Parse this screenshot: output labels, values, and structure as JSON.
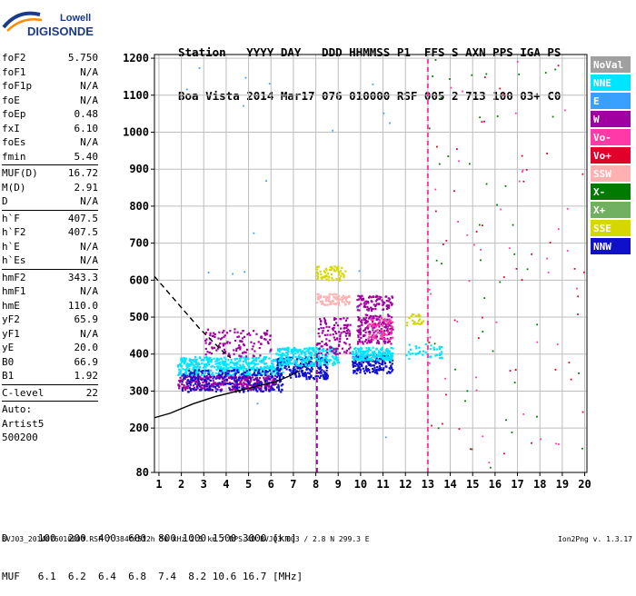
{
  "logo": {
    "line1": "Lowell",
    "line2": "DIGISONDE"
  },
  "header": {
    "line1": "Station   YYYY DAY   DDD HHMMSS P1  FFS S AXN PPS IGA PS",
    "line2": "Boa Vista 2014 Mar17 076 010000 RSF 005 2 713 100 03+ C0"
  },
  "params": [
    {
      "label": "foF2",
      "value": "5.750"
    },
    {
      "label": "foF1",
      "value": "N/A"
    },
    {
      "label": "foF1p",
      "value": "N/A"
    },
    {
      "label": "foE",
      "value": "N/A"
    },
    {
      "label": "foEp",
      "value": "0.48"
    },
    {
      "label": "fxI",
      "value": "6.10"
    },
    {
      "label": "foEs",
      "value": "N/A"
    },
    {
      "label": "fmin",
      "value": "5.40"
    },
    {
      "sep": true
    },
    {
      "label": "MUF(D)",
      "value": "16.72"
    },
    {
      "label": "M(D)",
      "value": "2.91"
    },
    {
      "label": "D",
      "value": "N/A"
    },
    {
      "sep": true
    },
    {
      "label": "h`F",
      "value": "407.5"
    },
    {
      "label": "h`F2",
      "value": "407.5"
    },
    {
      "label": "h`E",
      "value": "N/A"
    },
    {
      "label": "h`Es",
      "value": "N/A"
    },
    {
      "sep": true
    },
    {
      "label": "hmF2",
      "value": "343.3"
    },
    {
      "label": "hmF1",
      "value": "N/A"
    },
    {
      "label": "hmE",
      "value": "110.0"
    },
    {
      "label": "yF2",
      "value": "65.9"
    },
    {
      "label": "yF1",
      "value": "N/A"
    },
    {
      "label": "yE",
      "value": "20.0"
    },
    {
      "label": "B0",
      "value": "66.9"
    },
    {
      "label": "B1",
      "value": "1.92"
    },
    {
      "sep": true
    },
    {
      "label": "C-level",
      "value": "22"
    },
    {
      "sep": true
    }
  ],
  "auto": {
    "line1": "Auto:",
    "line2": "Artist5",
    "line3": "500200"
  },
  "footer": {
    "d_line": "D     100  200  400  600  800 1000 1500 3000 [km]",
    "muf_line": "MUF   6.1  6.2  6.4  6.8  7.4  8.2 10.6 16.7 [MHz]",
    "file_line": "BVJ03_2014076010000.RSF / 384fx512h 50 kHz 2.5 km / DPS-4D BVJ03 003 / 2.8 N 299.3 E",
    "version": "Ion2Png v. 1.3.17"
  },
  "chart_data": {
    "type": "scatter",
    "title": "",
    "xlabel": "",
    "ylabel": "",
    "xlim": [
      0.8,
      20.1
    ],
    "ylim": [
      80,
      1210
    ],
    "x_ticks": [
      1,
      2,
      3,
      4,
      5,
      6,
      7,
      8,
      9,
      10,
      11,
      12,
      13,
      14,
      15,
      16,
      17,
      18,
      19,
      20
    ],
    "y_ticks": [
      80,
      200,
      300,
      400,
      500,
      600,
      700,
      800,
      900,
      1000,
      1100,
      1200
    ],
    "grid": true,
    "legend_placement": "right",
    "legend": [
      {
        "name": "NoVal",
        "color": "#a0a0a0",
        "text": "#ffffff"
      },
      {
        "name": "NNE",
        "color": "#00e5ff",
        "text": "#ffffff"
      },
      {
        "name": "E",
        "color": "#3aa0ff",
        "text": "#ffffff"
      },
      {
        "name": "W",
        "color": "#a000a0",
        "text": "#ffffff"
      },
      {
        "name": "Vo-",
        "color": "#ff3aa8",
        "text": "#ffffff"
      },
      {
        "name": "Vo+",
        "color": "#e0002a",
        "text": "#ffffff"
      },
      {
        "name": "SSW",
        "color": "#ffb0b0",
        "text": "#ffffff"
      },
      {
        "name": "X-",
        "color": "#007a00",
        "text": "#ffffff"
      },
      {
        "name": "X+",
        "color": "#70b060",
        "text": "#ffffff"
      },
      {
        "name": "SSE",
        "color": "#d6d600",
        "text": "#ffffff"
      },
      {
        "name": "NNW",
        "color": "#1010c8",
        "text": "#ffffff"
      }
    ],
    "clusters": [
      {
        "x": [
          1.8,
          6.2
        ],
        "y": [
          305,
          345
        ],
        "color": "#a000a0",
        "n": 350
      },
      {
        "x": [
          1.8,
          6.5
        ],
        "y": [
          345,
          395
        ],
        "color": "#00e5ff",
        "n": 500
      },
      {
        "x": [
          3.0,
          6.0
        ],
        "y": [
          395,
          470
        ],
        "color": "#a000a0",
        "n": 120
      },
      {
        "x": [
          2.0,
          6.5
        ],
        "y": [
          300,
          360
        ],
        "color": "#1010c8",
        "n": 250
      },
      {
        "x": [
          6.2,
          8.5
        ],
        "y": [
          335,
          395
        ],
        "color": "#1010c8",
        "n": 220
      },
      {
        "x": [
          6.2,
          9.0
        ],
        "y": [
          370,
          420
        ],
        "color": "#00e5ff",
        "n": 260
      },
      {
        "x": [
          8.0,
          9.5
        ],
        "y": [
          400,
          500
        ],
        "color": "#a000a0",
        "n": 120
      },
      {
        "x": [
          9.6,
          11.4
        ],
        "y": [
          350,
          400
        ],
        "color": "#1010c8",
        "n": 180
      },
      {
        "x": [
          9.6,
          11.4
        ],
        "y": [
          385,
          420
        ],
        "color": "#00e5ff",
        "n": 180
      },
      {
        "x": [
          9.8,
          11.4
        ],
        "y": [
          430,
          510
        ],
        "color": "#a000a0",
        "n": 180
      },
      {
        "x": [
          9.8,
          11.4
        ],
        "y": [
          520,
          560
        ],
        "color": "#a000a0",
        "n": 90
      },
      {
        "x": [
          8.0,
          9.5
        ],
        "y": [
          535,
          565
        ],
        "color": "#ffb0b0",
        "n": 80
      },
      {
        "x": [
          8.0,
          9.3
        ],
        "y": [
          600,
          640
        ],
        "color": "#d6d600",
        "n": 60
      },
      {
        "x": [
          10.3,
          11.4
        ],
        "y": [
          440,
          500
        ],
        "color": "#ff3aa8",
        "n": 70
      },
      {
        "x": [
          12.0,
          12.8
        ],
        "y": [
          480,
          510
        ],
        "color": "#d6d600",
        "n": 25
      },
      {
        "x": [
          12.0,
          13.6
        ],
        "y": [
          390,
          430
        ],
        "color": "#00e5ff",
        "n": 40
      }
    ],
    "scatter_noise": [
      {
        "x": [
          13.0,
          20.0
        ],
        "y": [
          90,
          1200
        ],
        "color": "#007a00",
        "n": 45
      },
      {
        "x": [
          13.0,
          20.0
        ],
        "y": [
          90,
          1200
        ],
        "color": "#e0002a",
        "n": 45
      },
      {
        "x": [
          13.0,
          20.0
        ],
        "y": [
          90,
          1200
        ],
        "color": "#ff3aa8",
        "n": 40
      },
      {
        "x": [
          1.0,
          12.0
        ],
        "y": [
          100,
          1200
        ],
        "color": "#3aa0ff",
        "n": 20
      }
    ],
    "vertical_lines": [
      {
        "x": 8.05,
        "y": [
          80,
          405
        ],
        "color": "#a000a0",
        "dashed": true
      },
      {
        "x": 13.0,
        "y": [
          80,
          1200
        ],
        "color": "#ff3aa8",
        "dashed": true
      }
    ],
    "profile_solid": {
      "x": [
        0.8,
        1.5,
        2.5,
        3.5,
        4.5,
        5.5,
        6.2,
        6.8,
        7.3
      ],
      "y": [
        228,
        240,
        265,
        285,
        300,
        315,
        325,
        340,
        355
      ],
      "color": "#000000"
    },
    "profile_dashed": {
      "x": [
        0.8,
        1.3,
        1.8,
        2.3,
        2.8,
        3.3,
        3.8,
        4.2
      ],
      "y": [
        610,
        575,
        540,
        505,
        470,
        440,
        410,
        390
      ],
      "color": "#000000"
    }
  }
}
